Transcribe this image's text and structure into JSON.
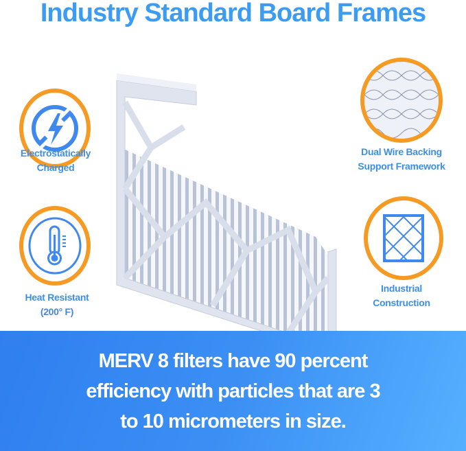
{
  "title": "Industry Standard Board Frames",
  "features": [
    {
      "icon": "no-static-lightning-icon",
      "line1": "Electrostatically",
      "line2": "Charged"
    },
    {
      "icon": "thermometer-icon",
      "line1": "Heat Resistant",
      "line2": "(200° F)"
    },
    {
      "icon": "wire-mesh-icon",
      "line1": "Dual Wire Backing",
      "line2": "Support Framework"
    },
    {
      "icon": "grid-frame-icon",
      "line1": "Industrial",
      "line2": "Construction"
    }
  ],
  "banner": {
    "line1": "MERV 8 filters have 90 percent",
    "line2": "efficiency with particles that are 3",
    "line3": "to 10 micrometers in size."
  },
  "colors": {
    "title": "#3c9cf2",
    "accent_ring": "#f59a23",
    "icon_blue": "#3f88ee",
    "banner": "#2f7ff0"
  }
}
